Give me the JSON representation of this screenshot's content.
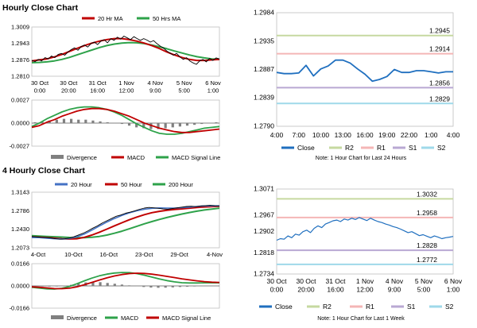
{
  "titles": {
    "hourly": "Hourly Close Chart",
    "four_hourly": "4 Hourly Close Chart"
  },
  "colors": {
    "close": "#000000",
    "ma_red": "#c00000",
    "ma_green": "#2ea24a",
    "ma_blue": "#4472c4",
    "divergence": "#808080",
    "macd": "#2ea24a",
    "signal": "#c00000",
    "zoom_close": "#1f6fbf",
    "r2": "#c6d9a0",
    "r1": "#f4b6b6",
    "s1": "#b9a8d3",
    "s2": "#9fd9ea"
  },
  "chart_data": [
    {
      "id": "hourly_price",
      "type": "line",
      "legend": [
        "20 Hr MA",
        "50 Hrs MA"
      ],
      "x_ticks": [
        "30 Oct\n0:00",
        "30 Oct\n20:00",
        "31 Oct\n16:00",
        "1 Nov\n12:00",
        "4 Nov\n9:00",
        "5 Nov\n5:00",
        "6 Nov\n1:00"
      ],
      "y_ticks": [
        "1.3009",
        "1.2943",
        "1.2876",
        "1.2810"
      ],
      "ylim": [
        1.281,
        1.3009
      ],
      "series": [
        {
          "values": [
            1.2874,
            1.2869,
            1.2878,
            1.2872,
            1.2885,
            1.288,
            1.2892,
            1.2885,
            1.2898,
            1.2902,
            1.2895,
            1.2908,
            1.2918,
            1.2925,
            1.2915,
            1.293,
            1.2936,
            1.2928,
            1.2942,
            1.2948,
            1.2938,
            1.2952,
            1.2958,
            1.2945,
            1.2962,
            1.2955,
            1.2968,
            1.296,
            1.2972,
            1.2965,
            1.2958,
            1.297,
            1.2962,
            1.2955,
            1.2962,
            1.2956,
            1.2948,
            1.2954,
            1.2942,
            1.2932,
            1.2924,
            1.2912,
            1.2904,
            1.2895,
            1.2902,
            1.2888,
            1.2878,
            1.2885,
            1.2872,
            1.2864,
            1.2858,
            1.2872,
            1.2878,
            1.2868,
            1.2882,
            1.2874,
            1.2884,
            1.288
          ]
        },
        {
          "name": "20 Hr MA",
          "values": [
            1.2872,
            1.2876,
            1.288,
            1.2888,
            1.2898,
            1.291,
            1.2922,
            1.2934,
            1.2944,
            1.2952,
            1.2958,
            1.2962,
            1.2962,
            1.2958,
            1.2952,
            1.2944,
            1.2934,
            1.2922,
            1.2908,
            1.2896,
            1.2886,
            1.2878,
            1.2874,
            1.2874,
            1.2876,
            1.2878
          ]
        },
        {
          "name": "50 Hrs MA",
          "values": [
            1.2865,
            1.2866,
            1.2868,
            1.2872,
            1.2878,
            1.2886,
            1.2896,
            1.2906,
            1.2916,
            1.2926,
            1.2934,
            1.294,
            1.2944,
            1.2946,
            1.2945,
            1.2942,
            1.2936,
            1.2929,
            1.2921,
            1.2912,
            1.2904,
            1.2896,
            1.2889,
            1.2884,
            1.288,
            1.2878
          ]
        }
      ]
    },
    {
      "id": "hourly_macd",
      "type": "bar",
      "legend": [
        "Divergence",
        "MACD",
        "MACD Signal Line"
      ],
      "y_ticks": [
        "0.0027",
        "0.0000",
        "-0.0027"
      ],
      "ylim": [
        -0.0027,
        0.0027
      ],
      "series": [
        {
          "name": "Divergence",
          "values": [
            0.0001,
            0.0002,
            0.0003,
            0.0004,
            0.0005,
            0.0005,
            0.0004,
            0.0004,
            0.0003,
            0.0002,
            0.0001,
            0.0,
            -0.0001,
            -0.0003,
            -0.0005,
            -0.0006,
            -0.0007,
            -0.0007,
            -0.0006,
            -0.0005,
            -0.0004,
            -0.0003,
            -0.0002,
            -0.0001,
            0.0,
            0.0001
          ]
        },
        {
          "name": "MACD",
          "values": [
            -0.0004,
            0.0,
            0.0005,
            0.0009,
            0.0013,
            0.0016,
            0.0018,
            0.0019,
            0.0019,
            0.0018,
            0.0016,
            0.0013,
            0.0009,
            0.0004,
            -0.0001,
            -0.0005,
            -0.0009,
            -0.0012,
            -0.0013,
            -0.0013,
            -0.0012,
            -0.001,
            -0.0008,
            -0.0006,
            -0.0005,
            -0.0004
          ]
        },
        {
          "name": "MACD Signal Line",
          "values": [
            -0.0005,
            -0.0003,
            0.0001,
            0.0004,
            0.0008,
            0.0011,
            0.0014,
            0.0016,
            0.0017,
            0.0017,
            0.0016,
            0.0014,
            0.0011,
            0.0008,
            0.0004,
            0.0,
            -0.0003,
            -0.0006,
            -0.0008,
            -0.001,
            -0.0011,
            -0.0011,
            -0.001,
            -0.0009,
            -0.0008,
            -0.0007
          ]
        }
      ]
    },
    {
      "id": "hourly_zoom",
      "type": "line",
      "legend": [
        "Close",
        "R2",
        "R1",
        "S1",
        "S2"
      ],
      "x_ticks": [
        "4:00",
        "7:00",
        "10:00",
        "13:00",
        "16:00",
        "19:00",
        "22:00",
        "1:00",
        "4:00"
      ],
      "y_ticks": [
        "1.2984",
        "1.2935",
        "1.2887",
        "1.2839",
        "1.2790"
      ],
      "ylim": [
        1.279,
        1.2984
      ],
      "note": "Note: 1 Hour Chart for Last 24 Hours",
      "levels": [
        {
          "name": "R2",
          "value": 1.2945,
          "label": "1.2945"
        },
        {
          "name": "R1",
          "value": 1.2914,
          "label": "1.2914"
        },
        {
          "name": "S1",
          "value": 1.2856,
          "label": "1.2856"
        },
        {
          "name": "S2",
          "value": 1.2829,
          "label": "1.2829"
        }
      ],
      "series": [
        {
          "name": "Close",
          "values": [
            1.2882,
            1.288,
            1.288,
            1.2881,
            1.2894,
            1.2876,
            1.2888,
            1.2893,
            1.2903,
            1.2903,
            1.2898,
            1.2888,
            1.2879,
            1.2867,
            1.287,
            1.2875,
            1.2887,
            1.2882,
            1.2882,
            1.2885,
            1.2885,
            1.2883,
            1.2881,
            1.2883,
            1.2883
          ]
        }
      ]
    },
    {
      "id": "four_hourly_price",
      "type": "line",
      "legend": [
        "20 Hour",
        "50 Hour",
        "200 Hour"
      ],
      "x_ticks": [
        "4-Oct",
        "10-Oct",
        "16-Oct",
        "23-Oct",
        "29-Oct",
        "4-Nov"
      ],
      "y_ticks": [
        "1.3143",
        "1.2786",
        "1.2430",
        "1.2073"
      ],
      "ylim": [
        1.2073,
        1.3143
      ],
      "series": [
        {
          "values": [
            1.229,
            1.2282,
            1.2275,
            1.227,
            1.2262,
            1.2248,
            1.2238,
            1.2245,
            1.226,
            1.2285,
            1.232,
            1.2355,
            1.24,
            1.245,
            1.2495,
            1.2548,
            1.2592,
            1.2635,
            1.268,
            1.2705,
            1.2738,
            1.276,
            1.2785,
            1.2815,
            1.2838,
            1.285,
            1.2842,
            1.2832,
            1.282,
            1.2815,
            1.2828,
            1.2842,
            1.2855,
            1.2868,
            1.2872,
            1.2865,
            1.2878,
            1.2885,
            1.2892,
            1.2885,
            1.288
          ]
        },
        {
          "name": "20 Hour",
          "values": [
            1.227,
            1.2268,
            1.2258,
            1.2248,
            1.2242,
            1.2252,
            1.2285,
            1.2338,
            1.2412,
            1.2492,
            1.2568,
            1.2635,
            1.2695,
            1.2745,
            1.2785,
            1.2815,
            1.2832,
            1.284,
            1.2838,
            1.2838,
            1.2845,
            1.2856,
            1.2868,
            1.2878,
            1.288,
            1.288
          ]
        },
        {
          "name": "50 Hour",
          "values": [
            1.2282,
            1.2275,
            1.2268,
            1.2258,
            1.2248,
            1.2242,
            1.2248,
            1.2275,
            1.2318,
            1.2372,
            1.2432,
            1.2495,
            1.2555,
            1.2612,
            1.2665,
            1.271,
            1.2748,
            1.2775,
            1.2795,
            1.281,
            1.2822,
            1.2835,
            1.2848,
            1.2858,
            1.2866,
            1.2872
          ]
        },
        {
          "name": "200 Hour",
          "values": [
            1.2305,
            1.2298,
            1.2292,
            1.2285,
            1.228,
            1.2272,
            1.2268,
            1.2268,
            1.2275,
            1.2292,
            1.2318,
            1.2352,
            1.2392,
            1.2438,
            1.2488,
            1.2535,
            1.2578,
            1.2618,
            1.2655,
            1.269,
            1.2722,
            1.2752,
            1.2778,
            1.28,
            1.2818,
            1.2835
          ]
        }
      ]
    },
    {
      "id": "four_hourly_macd",
      "type": "bar",
      "legend": [
        "Divergence",
        "MACD",
        "MACD Signal Line"
      ],
      "y_ticks": [
        "0.0166",
        "0.0000",
        "-0.0166"
      ],
      "ylim": [
        -0.0166,
        0.0166
      ],
      "series": [
        {
          "name": "Divergence",
          "values": [
            -0.0002,
            -0.0004,
            -0.0005,
            -0.0004,
            0.0,
            0.0008,
            0.0018,
            0.0026,
            0.003,
            0.0028,
            0.0022,
            0.0016,
            0.001,
            0.0004,
            -0.0002,
            -0.0008,
            -0.0012,
            -0.0014,
            -0.0013,
            -0.0011,
            -0.0008,
            -0.0006,
            -0.0004,
            -0.0003,
            -0.0002,
            -0.0001
          ]
        },
        {
          "name": "MACD",
          "values": [
            -0.001,
            -0.0016,
            -0.0022,
            -0.0024,
            -0.0018,
            -0.0004,
            0.0016,
            0.0038,
            0.0058,
            0.0075,
            0.0088,
            0.0096,
            0.01,
            0.0099,
            0.0092,
            0.008,
            0.0066,
            0.0052,
            0.004,
            0.003,
            0.0024,
            0.0022,
            0.0022,
            0.0023,
            0.0023,
            0.0023
          ]
        },
        {
          "name": "MACD Signal Line",
          "values": [
            -0.0007,
            -0.001,
            -0.0015,
            -0.002,
            -0.0021,
            -0.0017,
            -0.0007,
            0.0009,
            0.0026,
            0.0044,
            0.006,
            0.0074,
            0.0085,
            0.0092,
            0.0095,
            0.0093,
            0.0088,
            0.008,
            0.0071,
            0.0062,
            0.0053,
            0.0045,
            0.0038,
            0.0032,
            0.0028,
            0.0026
          ]
        }
      ]
    },
    {
      "id": "four_hourly_zoom",
      "type": "line",
      "legend": [
        "Close",
        "R2",
        "R1",
        "S1",
        "S2"
      ],
      "x_ticks": [
        "30 Oct\n0:00",
        "30 Oct\n20:00",
        "31 Oct\n16:00",
        "1 Nov\n12:00",
        "4 Nov\n9:00",
        "5 Nov\n5:00",
        "6 Nov\n1:00"
      ],
      "y_ticks": [
        "1.3071",
        "1.2967",
        "1.2902",
        "1.2818",
        "1.2734"
      ],
      "ylim": [
        1.2734,
        1.3071
      ],
      "note": "Note: 1 Hour Chart for Last 1 Week",
      "levels": [
        {
          "name": "R2",
          "value": 1.3032,
          "label": "1.3032"
        },
        {
          "name": "R1",
          "value": 1.2958,
          "label": "1.2958"
        },
        {
          "name": "S1",
          "value": 1.2828,
          "label": "1.2828"
        },
        {
          "name": "S2",
          "value": 1.2772,
          "label": "1.2772"
        }
      ],
      "series": [
        {
          "name": "Close",
          "values": [
            1.2868,
            1.2874,
            1.2872,
            1.2885,
            1.2878,
            1.2892,
            1.2888,
            1.2902,
            1.2908,
            1.2898,
            1.2915,
            1.2925,
            1.2918,
            1.2932,
            1.2938,
            1.2945,
            1.2948,
            1.2942,
            1.2952,
            1.2948,
            1.2955,
            1.295,
            1.2958,
            1.2952,
            1.2946,
            1.2955,
            1.2948,
            1.2942,
            1.2938,
            1.2932,
            1.2928,
            1.2922,
            1.2918,
            1.2912,
            1.2905,
            1.2898,
            1.2902,
            1.2894,
            1.2886,
            1.289,
            1.2884,
            1.2878,
            1.2885,
            1.288,
            1.2874,
            1.2878,
            1.288,
            1.2883
          ]
        }
      ]
    }
  ]
}
